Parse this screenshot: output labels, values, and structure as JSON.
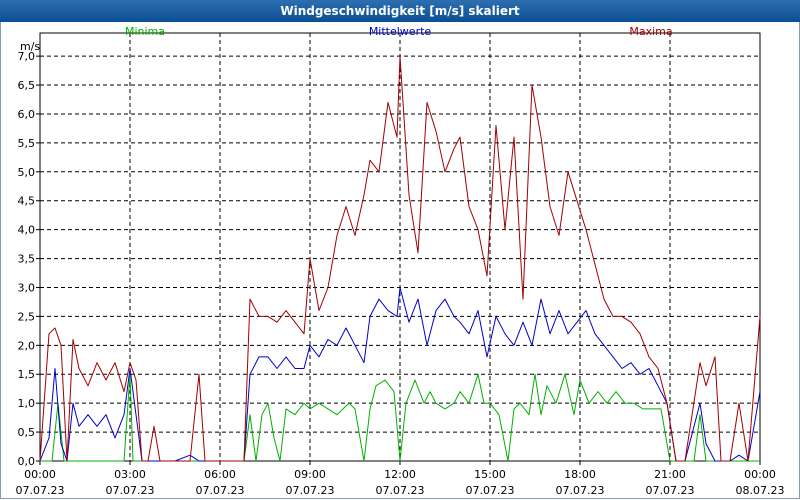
{
  "window": {
    "title": "Windgeschwindigkeit [m/s] skaliert"
  },
  "chart_data": {
    "type": "line",
    "title": "Windgeschwindigkeit [m/s] skaliert",
    "ylabel": "m/s",
    "xlabel": "",
    "ylim": [
      0,
      7.4
    ],
    "xlim_hours": [
      0,
      24
    ],
    "grid": true,
    "y_ticks": [
      "0,0",
      "0,5",
      "1,0",
      "1,5",
      "2,0",
      "2,5",
      "3,0",
      "3,5",
      "4,0",
      "4,5",
      "5,0",
      "5,5",
      "6,0",
      "6,5",
      "7,0"
    ],
    "x_ticks": [
      {
        "time": "00:00",
        "date": "07.07.23"
      },
      {
        "time": "03:00",
        "date": "07.07.23"
      },
      {
        "time": "06:00",
        "date": "07.07.23"
      },
      {
        "time": "09:00",
        "date": "07.07.23"
      },
      {
        "time": "12:00",
        "date": "07.07.23"
      },
      {
        "time": "15:00",
        "date": "07.07.23"
      },
      {
        "time": "18:00",
        "date": "07.07.23"
      },
      {
        "time": "21:00",
        "date": "07.07.23"
      },
      {
        "time": "00:00",
        "date": "08.07.23"
      }
    ],
    "series": [
      {
        "name": "Minima",
        "color": "#00b000",
        "points": [
          [
            0,
            0
          ],
          [
            0.4,
            0
          ],
          [
            0.6,
            1.0
          ],
          [
            0.8,
            0
          ],
          [
            1.0,
            0
          ],
          [
            1.2,
            0
          ],
          [
            1.5,
            0
          ],
          [
            2.0,
            0
          ],
          [
            2.5,
            0
          ],
          [
            2.8,
            0
          ],
          [
            3.0,
            1.5
          ],
          [
            3.1,
            0
          ],
          [
            3.3,
            0
          ],
          [
            3.5,
            0
          ],
          [
            4.0,
            0
          ],
          [
            4.5,
            0
          ],
          [
            5.0,
            0
          ],
          [
            5.5,
            0
          ],
          [
            6.0,
            0
          ],
          [
            6.8,
            0
          ],
          [
            7.0,
            0.8
          ],
          [
            7.2,
            0
          ],
          [
            7.4,
            0.8
          ],
          [
            7.6,
            1.0
          ],
          [
            7.8,
            0.4
          ],
          [
            8.0,
            0
          ],
          [
            8.2,
            0.9
          ],
          [
            8.5,
            0.8
          ],
          [
            8.8,
            1.0
          ],
          [
            9.0,
            0.9
          ],
          [
            9.3,
            1.0
          ],
          [
            9.6,
            0.9
          ],
          [
            9.9,
            0.8
          ],
          [
            10.1,
            0.9
          ],
          [
            10.3,
            1.0
          ],
          [
            10.5,
            0.9
          ],
          [
            10.8,
            0
          ],
          [
            11.0,
            0.9
          ],
          [
            11.2,
            1.3
          ],
          [
            11.5,
            1.4
          ],
          [
            11.8,
            1.2
          ],
          [
            12.0,
            0
          ],
          [
            12.2,
            1.0
          ],
          [
            12.5,
            1.4
          ],
          [
            12.8,
            1.0
          ],
          [
            13.0,
            1.2
          ],
          [
            13.2,
            1.0
          ],
          [
            13.5,
            0.9
          ],
          [
            13.8,
            1.0
          ],
          [
            14.0,
            1.2
          ],
          [
            14.3,
            1.0
          ],
          [
            14.6,
            1.5
          ],
          [
            14.8,
            1.0
          ],
          [
            15.0,
            1.0
          ],
          [
            15.3,
            0.8
          ],
          [
            15.6,
            0
          ],
          [
            15.8,
            0.9
          ],
          [
            16.0,
            1.0
          ],
          [
            16.3,
            0.8
          ],
          [
            16.5,
            1.5
          ],
          [
            16.7,
            0.8
          ],
          [
            16.9,
            1.3
          ],
          [
            17.2,
            1.0
          ],
          [
            17.5,
            1.5
          ],
          [
            17.8,
            0.8
          ],
          [
            18.0,
            1.4
          ],
          [
            18.3,
            1.0
          ],
          [
            18.6,
            1.2
          ],
          [
            18.9,
            1.0
          ],
          [
            19.2,
            1.2
          ],
          [
            19.5,
            1.0
          ],
          [
            19.8,
            1.0
          ],
          [
            20.1,
            0.9
          ],
          [
            20.4,
            0.9
          ],
          [
            20.7,
            0.9
          ],
          [
            21.0,
            0
          ],
          [
            21.3,
            0
          ],
          [
            21.8,
            0
          ],
          [
            22.0,
            0.8
          ],
          [
            22.2,
            0
          ],
          [
            22.5,
            0
          ],
          [
            23.0,
            0
          ],
          [
            23.5,
            0
          ],
          [
            24.0,
            0
          ]
        ]
      },
      {
        "name": "Mittelwerte",
        "color": "#0000cc",
        "points": [
          [
            0,
            0
          ],
          [
            0.3,
            0.4
          ],
          [
            0.5,
            1.6
          ],
          [
            0.7,
            0.3
          ],
          [
            0.9,
            0
          ],
          [
            1.1,
            1.0
          ],
          [
            1.3,
            0.6
          ],
          [
            1.6,
            0.8
          ],
          [
            1.9,
            0.6
          ],
          [
            2.2,
            0.8
          ],
          [
            2.5,
            0.4
          ],
          [
            2.8,
            0.8
          ],
          [
            3.0,
            1.6
          ],
          [
            3.2,
            0.8
          ],
          [
            3.4,
            0
          ],
          [
            3.6,
            0
          ],
          [
            4.0,
            0
          ],
          [
            4.5,
            0
          ],
          [
            5.0,
            0.1
          ],
          [
            5.3,
            0
          ],
          [
            5.5,
            0
          ],
          [
            6.0,
            0
          ],
          [
            6.8,
            0
          ],
          [
            7.0,
            1.5
          ],
          [
            7.3,
            1.8
          ],
          [
            7.6,
            1.8
          ],
          [
            7.9,
            1.6
          ],
          [
            8.2,
            1.8
          ],
          [
            8.5,
            1.6
          ],
          [
            8.8,
            1.6
          ],
          [
            9.0,
            2.0
          ],
          [
            9.3,
            1.8
          ],
          [
            9.6,
            2.1
          ],
          [
            9.9,
            2.0
          ],
          [
            10.2,
            2.3
          ],
          [
            10.5,
            2.0
          ],
          [
            10.8,
            1.7
          ],
          [
            11.0,
            2.5
          ],
          [
            11.3,
            2.8
          ],
          [
            11.6,
            2.6
          ],
          [
            11.9,
            2.5
          ],
          [
            12.0,
            3.0
          ],
          [
            12.3,
            2.4
          ],
          [
            12.6,
            2.8
          ],
          [
            12.9,
            2.0
          ],
          [
            13.2,
            2.6
          ],
          [
            13.5,
            2.8
          ],
          [
            13.8,
            2.5
          ],
          [
            14.0,
            2.4
          ],
          [
            14.3,
            2.2
          ],
          [
            14.6,
            2.6
          ],
          [
            14.9,
            1.8
          ],
          [
            15.2,
            2.5
          ],
          [
            15.5,
            2.2
          ],
          [
            15.8,
            2.0
          ],
          [
            16.1,
            2.4
          ],
          [
            16.4,
            2.0
          ],
          [
            16.7,
            2.8
          ],
          [
            17.0,
            2.2
          ],
          [
            17.3,
            2.6
          ],
          [
            17.6,
            2.2
          ],
          [
            17.9,
            2.4
          ],
          [
            18.2,
            2.6
          ],
          [
            18.5,
            2.2
          ],
          [
            18.8,
            2.0
          ],
          [
            19.1,
            1.8
          ],
          [
            19.4,
            1.6
          ],
          [
            19.7,
            1.7
          ],
          [
            20.0,
            1.5
          ],
          [
            20.3,
            1.6
          ],
          [
            20.6,
            1.3
          ],
          [
            20.9,
            1.0
          ],
          [
            21.2,
            0
          ],
          [
            21.5,
            0
          ],
          [
            22.0,
            1.0
          ],
          [
            22.2,
            0.3
          ],
          [
            22.5,
            0
          ],
          [
            23.0,
            0
          ],
          [
            23.3,
            0.1
          ],
          [
            23.6,
            0
          ],
          [
            24.0,
            1.2
          ]
        ]
      },
      {
        "name": "Maxima",
        "color": "#a00000",
        "points": [
          [
            0,
            0
          ],
          [
            0.3,
            2.2
          ],
          [
            0.5,
            2.3
          ],
          [
            0.7,
            2.0
          ],
          [
            0.9,
            0
          ],
          [
            1.1,
            2.1
          ],
          [
            1.3,
            1.6
          ],
          [
            1.6,
            1.3
          ],
          [
            1.9,
            1.7
          ],
          [
            2.2,
            1.4
          ],
          [
            2.5,
            1.7
          ],
          [
            2.8,
            1.2
          ],
          [
            3.0,
            1.7
          ],
          [
            3.2,
            1.4
          ],
          [
            3.4,
            0
          ],
          [
            3.6,
            0
          ],
          [
            3.8,
            0.6
          ],
          [
            4.0,
            0
          ],
          [
            4.5,
            0
          ],
          [
            5.0,
            0
          ],
          [
            5.3,
            1.5
          ],
          [
            5.5,
            0
          ],
          [
            6.0,
            0
          ],
          [
            6.8,
            0
          ],
          [
            7.0,
            2.8
          ],
          [
            7.3,
            2.5
          ],
          [
            7.6,
            2.5
          ],
          [
            7.9,
            2.4
          ],
          [
            8.2,
            2.6
          ],
          [
            8.5,
            2.4
          ],
          [
            8.8,
            2.2
          ],
          [
            9.0,
            3.5
          ],
          [
            9.3,
            2.6
          ],
          [
            9.6,
            3.0
          ],
          [
            9.9,
            3.9
          ],
          [
            10.2,
            4.4
          ],
          [
            10.5,
            3.9
          ],
          [
            10.8,
            4.6
          ],
          [
            11.0,
            5.2
          ],
          [
            11.3,
            5.0
          ],
          [
            11.6,
            6.2
          ],
          [
            11.9,
            5.6
          ],
          [
            12.0,
            7.0
          ],
          [
            12.3,
            4.6
          ],
          [
            12.6,
            3.6
          ],
          [
            12.9,
            6.2
          ],
          [
            13.2,
            5.7
          ],
          [
            13.5,
            5.0
          ],
          [
            13.8,
            5.4
          ],
          [
            14.0,
            5.6
          ],
          [
            14.3,
            4.4
          ],
          [
            14.6,
            4.0
          ],
          [
            14.9,
            3.2
          ],
          [
            15.2,
            5.8
          ],
          [
            15.5,
            4.0
          ],
          [
            15.8,
            5.6
          ],
          [
            16.1,
            2.8
          ],
          [
            16.4,
            6.5
          ],
          [
            16.7,
            5.6
          ],
          [
            17.0,
            4.4
          ],
          [
            17.3,
            3.9
          ],
          [
            17.6,
            5.0
          ],
          [
            17.9,
            4.5
          ],
          [
            18.2,
            4.0
          ],
          [
            18.5,
            3.4
          ],
          [
            18.8,
            2.8
          ],
          [
            19.1,
            2.5
          ],
          [
            19.4,
            2.5
          ],
          [
            19.7,
            2.4
          ],
          [
            20.0,
            2.2
          ],
          [
            20.3,
            1.8
          ],
          [
            20.6,
            1.6
          ],
          [
            20.9,
            1.0
          ],
          [
            21.2,
            0
          ],
          [
            21.5,
            0
          ],
          [
            22.0,
            1.7
          ],
          [
            22.2,
            1.3
          ],
          [
            22.5,
            1.8
          ],
          [
            22.7,
            0
          ],
          [
            23.0,
            0
          ],
          [
            23.3,
            1.0
          ],
          [
            23.6,
            0
          ],
          [
            24.0,
            2.5
          ]
        ]
      }
    ]
  }
}
